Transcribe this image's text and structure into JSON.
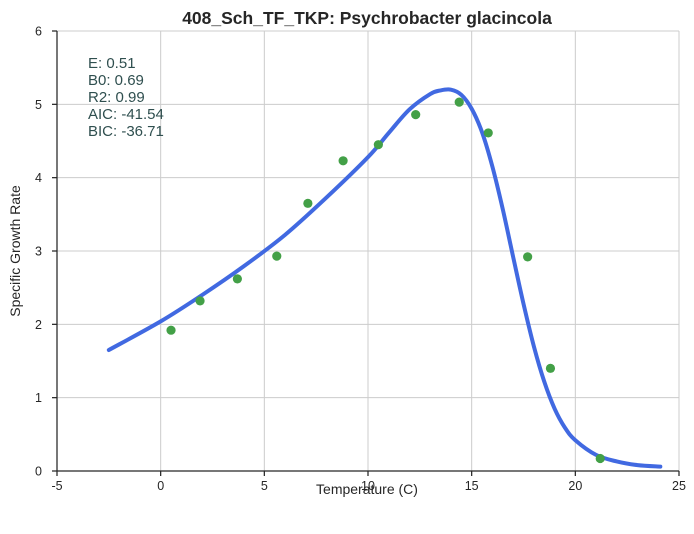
{
  "chart_data": {
    "type": "scatter",
    "title": "408_Sch_TF_TKP: Psychrobacter glacincola",
    "xlabel": "Temperature (C)",
    "ylabel": "Specific Growth Rate",
    "xlim": [
      -5,
      25
    ],
    "ylim": [
      0,
      6
    ],
    "xticks": [
      -5,
      0,
      5,
      10,
      15,
      20,
      25
    ],
    "yticks": [
      0,
      1,
      2,
      3,
      4,
      5,
      6
    ],
    "grid": true,
    "colors": {
      "points": "#43a047",
      "curve": "#4169e1",
      "annotation": "#2f4f4f"
    },
    "annotations": [
      "E:  0.51",
      "B0:  0.69",
      "R2:  0.99",
      "AIC: -41.54",
      "BIC: -36.71"
    ],
    "series": [
      {
        "kind": "points",
        "x": [
          0.5,
          1.9,
          3.7,
          5.6,
          7.1,
          8.8,
          10.5,
          12.3,
          14.4,
          15.8,
          17.7,
          18.8,
          21.2
        ],
        "y": [
          1.92,
          2.32,
          2.62,
          2.93,
          3.65,
          4.23,
          4.45,
          4.86,
          5.03,
          4.61,
          2.92,
          1.4,
          0.17
        ]
      },
      {
        "kind": "curve",
        "x": [
          -2.5,
          0,
          2,
          4,
          6,
          8,
          10,
          11,
          12,
          13,
          13.5,
          14,
          14.5,
          15,
          15.5,
          16,
          16.5,
          17,
          17.5,
          18,
          18.5,
          19,
          19.5,
          20,
          21,
          22,
          23,
          24.1
        ],
        "y": [
          1.65,
          2.04,
          2.4,
          2.79,
          3.22,
          3.73,
          4.28,
          4.61,
          4.93,
          5.14,
          5.19,
          5.2,
          5.13,
          4.94,
          4.62,
          4.15,
          3.57,
          2.92,
          2.28,
          1.7,
          1.22,
          0.85,
          0.59,
          0.42,
          0.22,
          0.13,
          0.08,
          0.06
        ]
      }
    ]
  }
}
